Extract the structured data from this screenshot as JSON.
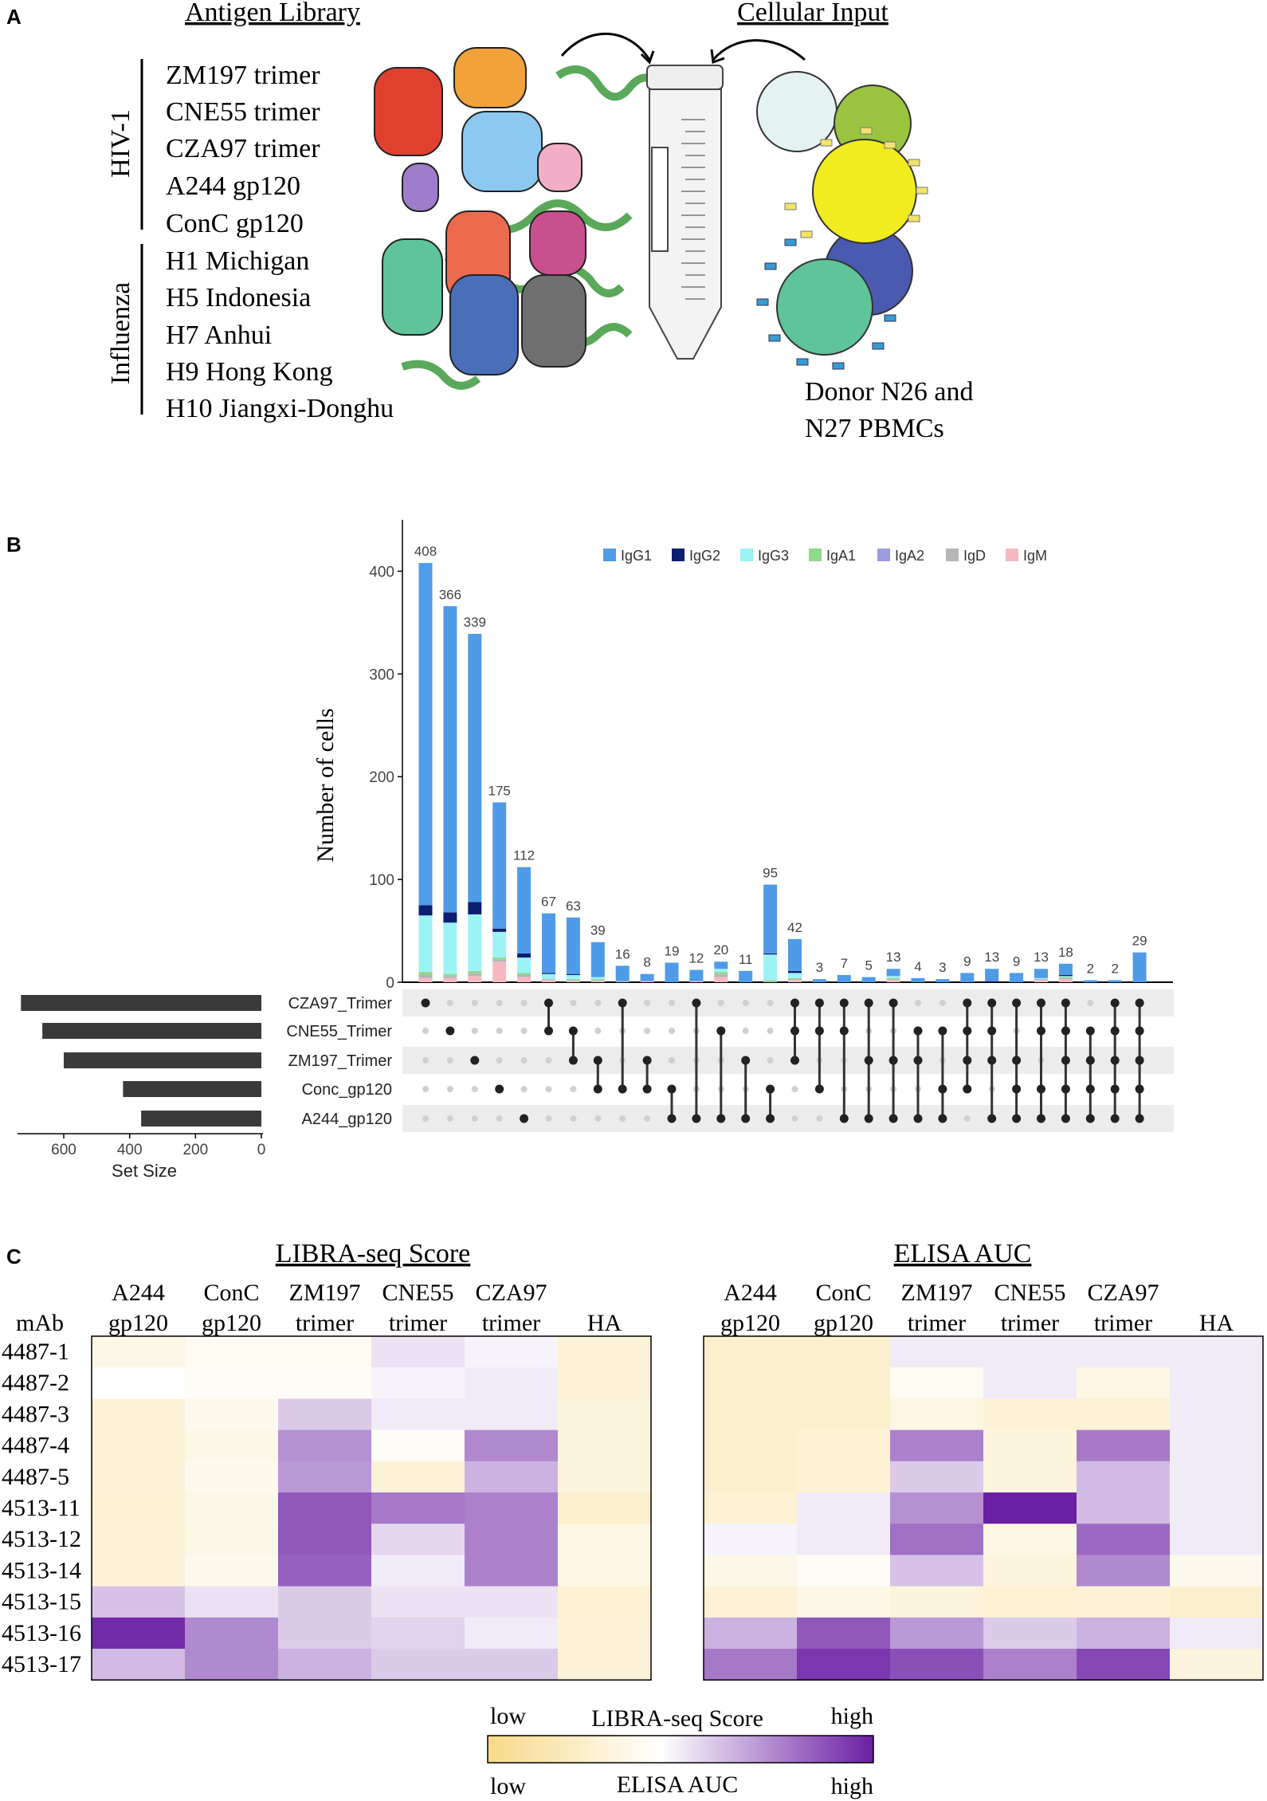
{
  "panel_labels": {
    "a": "A",
    "b": "B",
    "c": "C"
  },
  "panel_a": {
    "antigen_title": "Antigen Library",
    "cellular_title": "Cellular Input",
    "group_hiv": "HIV-1",
    "group_flu": "Influenza",
    "hiv_antigens": [
      "ZM197 trimer",
      "CNE55 trimer",
      "CZA97 trimer",
      "A244 gp120",
      "ConC gp120"
    ],
    "flu_antigens": [
      "H1 Michigan",
      "H5 Indonesia",
      "H7 Anhui",
      "H9 Hong Kong",
      "H10 Jiangxi-Donghu"
    ],
    "donor_line1": "Donor N26 and",
    "donor_line2": "N27 PBMCs",
    "colors": {
      "red": "#e0412f",
      "orange": "#f2a23a",
      "lightblue": "#8cc8ef",
      "pink": "#f2aec6",
      "purple": "#a07ccc",
      "salmon": "#ec6b4f",
      "magenta": "#c8508f",
      "teal": "#5fc49a",
      "blue": "#4a6fb8",
      "gray": "#6f6f6f",
      "ribbon": "#7fce7f"
    }
  },
  "chart_data": [
    {
      "type": "bar",
      "title": "",
      "ylabel": "Number of cells",
      "ylim": [
        0,
        450
      ],
      "yticks": [
        0,
        100,
        200,
        300,
        400
      ],
      "legend": [
        {
          "name": "IgG1",
          "color": "#4f9be8"
        },
        {
          "name": "IgG2",
          "color": "#0b1f70"
        },
        {
          "name": "IgG3",
          "color": "#9cf3f5"
        },
        {
          "name": "IgA1",
          "color": "#8ed98a"
        },
        {
          "name": "IgA2",
          "color": "#9b9ce0"
        },
        {
          "name": "IgD",
          "color": "#b6b6b6"
        },
        {
          "name": "IgM",
          "color": "#f7b8c2"
        }
      ],
      "totals": [
        408,
        366,
        339,
        175,
        112,
        67,
        63,
        39,
        16,
        8,
        19,
        12,
        20,
        11,
        95,
        42,
        3,
        7,
        5,
        13,
        4,
        3,
        9,
        13,
        9,
        13,
        18,
        2,
        2,
        29
      ],
      "segments": {
        "IgG2": [
          10,
          10,
          12,
          3,
          4,
          1,
          1,
          0,
          0,
          0,
          0,
          0,
          0,
          0,
          1,
          2,
          0,
          0,
          0,
          0,
          0,
          0,
          0,
          1,
          0,
          0,
          1,
          0,
          0,
          0
        ],
        "IgG3": [
          55,
          50,
          55,
          25,
          15,
          5,
          4,
          2,
          0,
          0,
          0,
          0,
          3,
          0,
          25,
          5,
          0,
          0,
          0,
          2,
          0,
          0,
          0,
          0,
          0,
          1,
          1,
          0,
          0,
          0
        ],
        "IgA1": [
          3,
          2,
          2,
          2,
          2,
          0,
          1,
          1,
          0,
          0,
          0,
          0,
          2,
          0,
          1,
          1,
          0,
          0,
          0,
          1,
          0,
          0,
          0,
          0,
          0,
          0,
          1,
          0,
          0,
          0
        ],
        "IgD": [
          3,
          2,
          3,
          2,
          2,
          1,
          1,
          1,
          1,
          0,
          0,
          0,
          3,
          0,
          1,
          1,
          0,
          0,
          0,
          1,
          0,
          0,
          0,
          0,
          0,
          1,
          1,
          0,
          0,
          0
        ],
        "IgM": [
          4,
          4,
          6,
          20,
          5,
          2,
          1,
          1,
          0,
          1,
          0,
          1,
          5,
          0,
          0,
          2,
          0,
          0,
          0,
          2,
          0,
          0,
          0,
          0,
          0,
          2,
          3,
          0,
          0,
          0
        ]
      },
      "sets": [
        "CZA97_Trimer",
        "CNE55_Trimer",
        "ZM197_Trimer",
        "Conc_gp120",
        "A244_gp120"
      ],
      "set_sizes": [
        730,
        665,
        600,
        420,
        365
      ],
      "set_axis_ticks": [
        600,
        400,
        200,
        0
      ],
      "set_axis_label": "Set Size",
      "intersections": [
        [
          0
        ],
        [
          1
        ],
        [
          2
        ],
        [
          3
        ],
        [
          4
        ],
        [
          0,
          1
        ],
        [
          1,
          2
        ],
        [
          2,
          3
        ],
        [
          0,
          3
        ],
        [
          2,
          3
        ],
        [
          3,
          4
        ],
        [
          0,
          4
        ],
        [
          1,
          4
        ],
        [
          2,
          4
        ],
        [
          3,
          4
        ],
        [
          0,
          1,
          2
        ],
        [
          0,
          1,
          3
        ],
        [
          0,
          1,
          4
        ],
        [
          0,
          2,
          4
        ],
        [
          0,
          2,
          4
        ],
        [
          1,
          2,
          4
        ],
        [
          1,
          3,
          4
        ],
        [
          0,
          1,
          2,
          3
        ],
        [
          0,
          1,
          2,
          4
        ],
        [
          0,
          2,
          3,
          4
        ],
        [
          0,
          1,
          3,
          4
        ],
        [
          0,
          1,
          2,
          3,
          4
        ],
        [
          1,
          2,
          3,
          4
        ],
        [
          0,
          1,
          2,
          3,
          4
        ],
        [
          0,
          1,
          2,
          3,
          4
        ]
      ]
    },
    {
      "type": "heatmap",
      "title": "LIBRA-seq Score",
      "columns": [
        [
          "A244",
          "gp120"
        ],
        [
          "ConC",
          "gp120"
        ],
        [
          "ZM197",
          "trimer"
        ],
        [
          "CNE55",
          "trimer"
        ],
        [
          "CZA97",
          "trimer"
        ],
        [
          "HA"
        ]
      ],
      "row_header": "mAb",
      "rows": [
        "4487-1",
        "4487-2",
        "4487-3",
        "4487-4",
        "4487-5",
        "4513-11",
        "4513-12",
        "4513-14",
        "4513-15",
        "4513-16",
        "4513-17"
      ],
      "values": [
        [
          0.35,
          0.4,
          0.4,
          0.52,
          0.48,
          0.3
        ],
        [
          0.45,
          0.42,
          0.42,
          0.48,
          0.5,
          0.3
        ],
        [
          0.3,
          0.38,
          0.58,
          0.5,
          0.5,
          0.32
        ],
        [
          0.3,
          0.36,
          0.72,
          0.42,
          0.74,
          0.32
        ],
        [
          0.3,
          0.38,
          0.7,
          0.3,
          0.64,
          0.32
        ],
        [
          0.28,
          0.36,
          0.86,
          0.78,
          0.76,
          0.26
        ],
        [
          0.3,
          0.36,
          0.86,
          0.55,
          0.76,
          0.34
        ],
        [
          0.3,
          0.38,
          0.84,
          0.5,
          0.76,
          0.34
        ],
        [
          0.6,
          0.52,
          0.58,
          0.52,
          0.52,
          0.28
        ],
        [
          0.97,
          0.74,
          0.58,
          0.56,
          0.5,
          0.3
        ],
        [
          0.62,
          0.74,
          0.64,
          0.58,
          0.58,
          0.3
        ]
      ]
    },
    {
      "type": "heatmap",
      "title": "ELISA AUC",
      "columns": [
        [
          "A244",
          "gp120"
        ],
        [
          "ConC",
          "gp120"
        ],
        [
          "ZM197",
          "trimer"
        ],
        [
          "CNE55",
          "trimer"
        ],
        [
          "CZA97",
          "trimer"
        ],
        [
          "HA"
        ]
      ],
      "rows": [
        "4487-1",
        "4487-2",
        "4487-3",
        "4487-4",
        "4487-5",
        "4513-11",
        "4513-12",
        "4513-14",
        "4513-15",
        "4513-16",
        "4513-17"
      ],
      "values": [
        [
          0.26,
          0.26,
          0.5,
          0.5,
          0.5,
          0.5
        ],
        [
          0.26,
          0.26,
          0.4,
          0.5,
          0.34,
          0.5
        ],
        [
          0.26,
          0.26,
          0.34,
          0.3,
          0.3,
          0.5
        ],
        [
          0.26,
          0.28,
          0.76,
          0.32,
          0.78,
          0.5
        ],
        [
          0.26,
          0.28,
          0.58,
          0.32,
          0.62,
          0.5
        ],
        [
          0.28,
          0.5,
          0.72,
          1.0,
          0.62,
          0.5
        ],
        [
          0.48,
          0.5,
          0.8,
          0.34,
          0.82,
          0.5
        ],
        [
          0.36,
          0.42,
          0.6,
          0.32,
          0.74,
          0.38
        ],
        [
          0.3,
          0.36,
          0.32,
          0.28,
          0.3,
          0.26
        ],
        [
          0.64,
          0.86,
          0.7,
          0.58,
          0.64,
          0.5
        ],
        [
          0.78,
          0.94,
          0.88,
          0.76,
          0.9,
          0.32
        ]
      ]
    }
  ],
  "colorbar": {
    "low_top": "low",
    "label_top": "LIBRA-seq Score",
    "high_top": "high",
    "low_bottom": "low",
    "label_bottom": "ELISA AUC",
    "high_bottom": "high",
    "colors": [
      "#f7d98a",
      "#ffffff",
      "#6a1fa4"
    ]
  }
}
